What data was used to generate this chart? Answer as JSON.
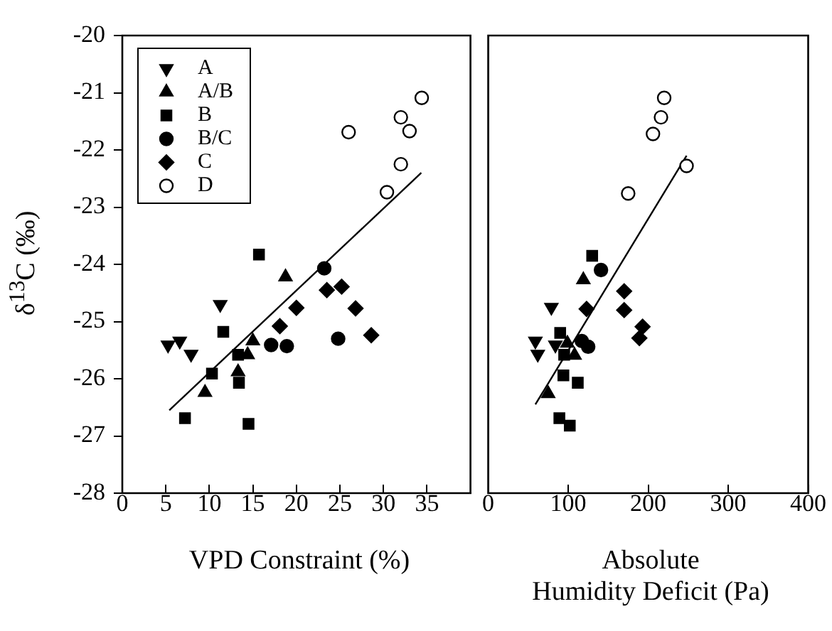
{
  "chart_data": [
    {
      "type": "scatter",
      "xlabel": "VPD Constraint (%)",
      "ylabel": "δ$^{13}$C (‰)",
      "xlim": [
        0,
        40
      ],
      "xticks": [
        0,
        5,
        10,
        15,
        20,
        25,
        30,
        35
      ],
      "ylim": [
        -28,
        -20
      ],
      "yticks": [
        -28,
        -27,
        -26,
        -25,
        -24,
        -23,
        -22,
        -21,
        -20
      ],
      "grid": false,
      "legend": "top left",
      "series": [
        {
          "name": "A",
          "color": "#000000",
          "marker": "triangle-down",
          "x": [
            5.25,
            6.6,
            7.9,
            11.25
          ],
          "values": [
            -25.41,
            -25.34,
            -25.57,
            -24.7
          ]
        },
        {
          "name": "A/B",
          "color": "#000000",
          "marker": "triangle",
          "x": [
            9.5,
            13.3,
            18.75,
            15.0,
            14.4
          ],
          "values": [
            -26.24,
            -25.88,
            -24.22,
            -25.34,
            -25.58
          ]
        },
        {
          "name": "B",
          "color": "#000000",
          "marker": "square",
          "x": [
            15.7,
            11.6,
            10.3,
            13.4,
            7.2,
            14.5,
            13.3
          ],
          "values": [
            -23.83,
            -25.18,
            -25.91,
            -26.07,
            -26.69,
            -26.79,
            -25.58
          ]
        },
        {
          "name": "B/C",
          "color": "#000000",
          "marker": "circle",
          "x": [
            23.2,
            17.1,
            18.9,
            24.8
          ],
          "values": [
            -24.07,
            -25.41,
            -25.43,
            -25.3
          ]
        },
        {
          "name": "C",
          "color": "#000000",
          "marker": "diamond",
          "x": [
            23.5,
            25.2,
            20.0,
            18.1,
            26.8,
            28.6
          ],
          "values": [
            -24.45,
            -24.39,
            -24.76,
            -25.08,
            -24.77,
            -25.24
          ]
        },
        {
          "name": "D",
          "color": "#ffffff",
          "marker": "circle",
          "x": [
            26.0,
            32.0,
            33.0,
            34.4,
            32.0,
            30.4
          ],
          "values": [
            -21.69,
            -21.43,
            -21.67,
            -21.09,
            -22.25,
            -22.74
          ]
        },
        {
          "type": "line",
          "color": "#000000",
          "marker": "none",
          "x": [
            5.4,
            34.35
          ],
          "values": [
            -26.55,
            -22.4
          ]
        }
      ]
    },
    {
      "type": "scatter",
      "xlabel": "Absolute\nHumidity Deficit (Pa)",
      "xlim": [
        0,
        400
      ],
      "xticks": [
        0,
        100,
        200,
        300,
        400
      ],
      "ylim": [
        -28,
        -20
      ],
      "yticks": [
        -28,
        -27,
        -26,
        -25,
        -24,
        -23,
        -22,
        -21,
        -20
      ],
      "grid": false,
      "legend": false,
      "tick_labels": "x",
      "series": [
        {
          "color": "#000000",
          "marker": "triangle-down",
          "x": [
            79,
            59,
            62,
            84
          ],
          "values": [
            -24.75,
            -25.34,
            -25.57,
            -25.41
          ]
        },
        {
          "color": "#000000",
          "marker": "triangle",
          "x": [
            119,
            108,
            75,
            99
          ],
          "values": [
            -24.27,
            -25.59,
            -26.26,
            -25.38
          ]
        },
        {
          "color": "#000000",
          "marker": "square",
          "x": [
            130,
            90,
            94,
            112,
            89,
            102,
            95
          ],
          "values": [
            -23.85,
            -25.2,
            -25.94,
            -26.07,
            -26.69,
            -26.82,
            -25.58
          ]
        },
        {
          "color": "#000000",
          "marker": "circle",
          "x": [
            141,
            117,
            125
          ],
          "values": [
            -24.1,
            -25.34,
            -25.44
          ]
        },
        {
          "color": "#000000",
          "marker": "diamond",
          "x": [
            170,
            170,
            123,
            193,
            189
          ],
          "values": [
            -24.47,
            -24.8,
            -24.78,
            -25.09,
            -25.29
          ]
        },
        {
          "color": "#ffffff",
          "marker": "circle",
          "x": [
            220,
            216,
            206,
            248,
            175
          ],
          "values": [
            -21.09,
            -21.43,
            -21.72,
            -22.28,
            -22.76
          ]
        },
        {
          "type": "line",
          "color": "#000000",
          "marker": "none",
          "x": [
            59,
            248
          ],
          "values": [
            -26.45,
            -22.1
          ]
        }
      ]
    }
  ]
}
